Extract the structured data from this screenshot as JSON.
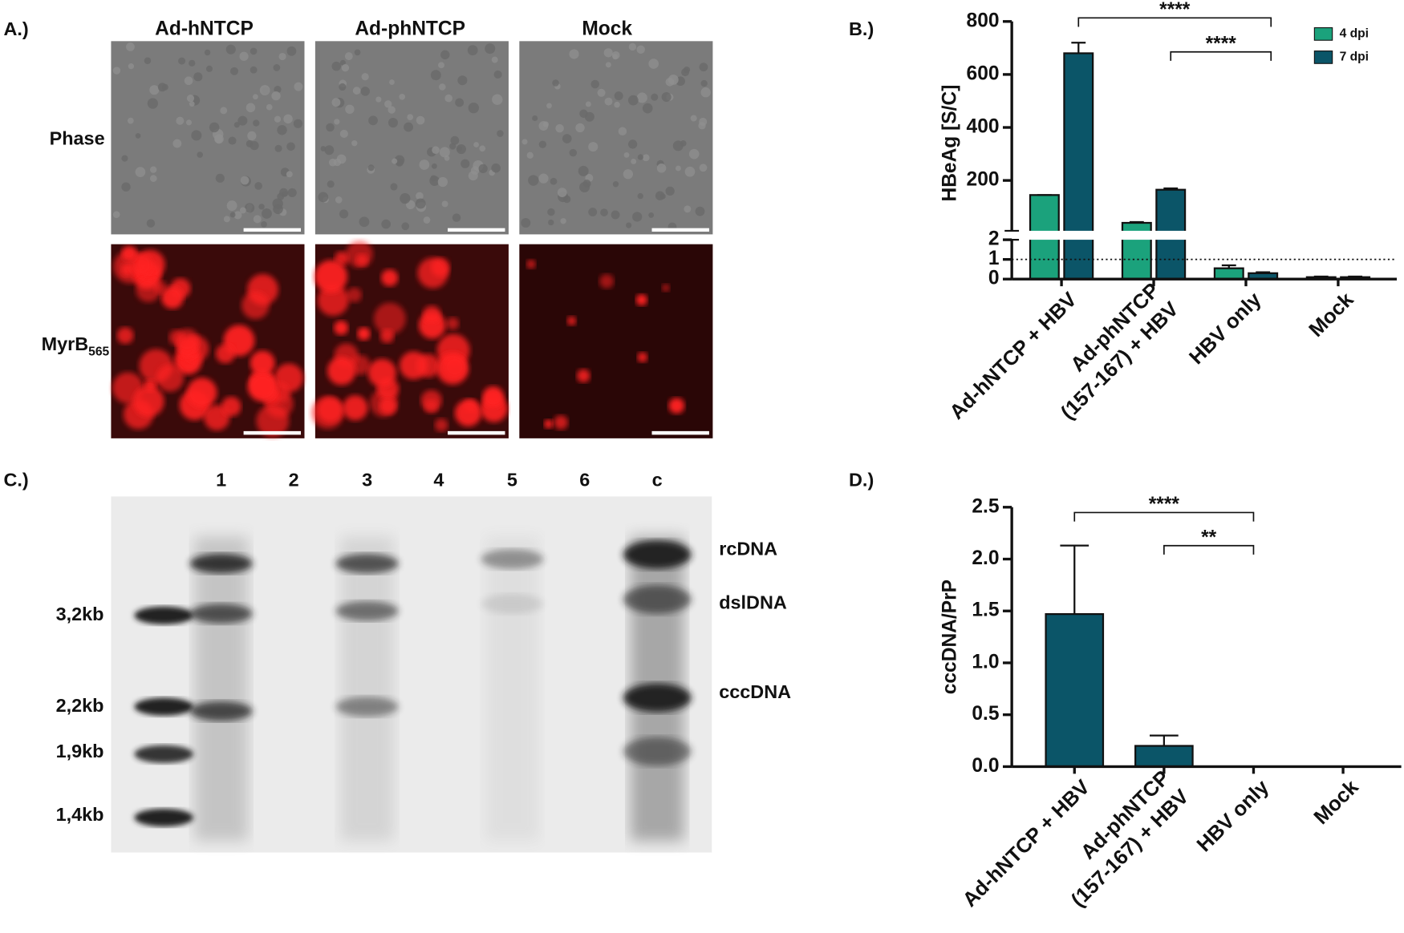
{
  "panel_a": {
    "label": "A.)",
    "columns": [
      "Ad-hNTCP",
      "Ad-phNTCP",
      "Mock"
    ],
    "rows": [
      {
        "text": "Phase"
      },
      {
        "text": "MyrB",
        "subscript": "565"
      }
    ]
  },
  "panel_c": {
    "label": "C.)",
    "lanes": [
      "1",
      "2",
      "3",
      "4",
      "5",
      "6",
      "c"
    ],
    "size_markers": [
      "3,2kb",
      "2,2kb",
      "1,9kb",
      "1,4kb"
    ],
    "bands": [
      "rcDNA",
      "dslDNA",
      "cccDNA"
    ]
  },
  "chart_data": [
    {
      "type": "bar",
      "panel_label": "B.)",
      "y_label": "HBeAg [S/C]",
      "categories": [
        [
          "Ad-hNTCP + HBV"
        ],
        [
          "Ad-phNTCP",
          "(157-167) + HBV"
        ],
        [
          "HBV only"
        ],
        [
          "Mock"
        ]
      ],
      "series": [
        {
          "name": "4 dpi",
          "color": "#1ba27c",
          "values": [
            145,
            40,
            0.55,
            0.1
          ],
          "errors": [
            0,
            3,
            0.15,
            0.03
          ]
        },
        {
          "name": "7 dpi",
          "color": "#0b5568",
          "values": [
            680,
            165,
            0.3,
            0.1
          ],
          "errors": [
            40,
            5,
            0.05,
            0.03
          ]
        }
      ],
      "segments": [
        {
          "ylim": [
            0,
            2
          ],
          "yticks": [
            0,
            1,
            2
          ]
        },
        {
          "ylim": [
            10,
            800
          ],
          "yticks": [
            200,
            400,
            600,
            800
          ]
        }
      ],
      "threshold": 1,
      "legend": "top-right",
      "annotations": [
        {
          "text": "****",
          "from": 0,
          "to": 2
        },
        {
          "text": "****",
          "from": 1,
          "to": 2
        }
      ]
    },
    {
      "type": "bar",
      "panel_label": "D.)",
      "y_label": "cccDNA/PrP",
      "categories": [
        [
          "Ad-hNTCP + HBV"
        ],
        [
          "Ad-phNTCP",
          "(157-167) + HBV"
        ],
        [
          "HBV only"
        ],
        [
          "Mock"
        ]
      ],
      "series": [
        {
          "color": "#0b5568",
          "values": [
            1.47,
            0.2,
            0,
            0
          ],
          "errors": [
            0.66,
            0.1,
            0,
            0
          ]
        }
      ],
      "ylim": [
        0,
        2.5
      ],
      "yticks": [
        {
          "value": 0,
          "label": "0.0"
        },
        0.5,
        {
          "value": 1,
          "label": "1.0"
        },
        1.5,
        {
          "value": 2,
          "label": "2.0"
        },
        2.5
      ],
      "annotations": [
        {
          "text": "****",
          "from": 0,
          "to": 2
        },
        {
          "text": "**",
          "from": 1,
          "to": 2
        }
      ]
    }
  ]
}
